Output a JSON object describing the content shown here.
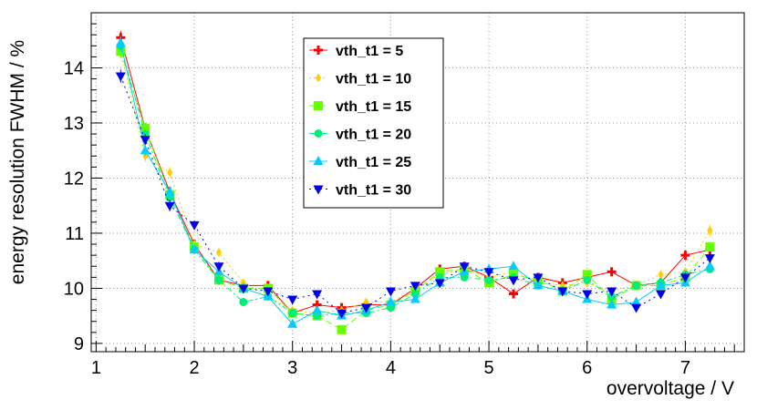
{
  "chart_data": {
    "type": "line",
    "title": "",
    "xlabel": "overvoltage / V",
    "ylabel": "energy resolution FWHM / %",
    "xlim": [
      0.95,
      7.6
    ],
    "ylim": [
      8.85,
      15.0
    ],
    "xticks": [
      1,
      2,
      3,
      4,
      5,
      6,
      7
    ],
    "yticks": [
      9,
      10,
      11,
      12,
      13,
      14
    ],
    "grid": true,
    "legend_position": "top-center",
    "x": [
      1.25,
      1.5,
      1.75,
      2.0,
      2.25,
      2.5,
      2.75,
      3.0,
      3.25,
      3.5,
      3.75,
      4.0,
      4.25,
      4.5,
      4.75,
      5.0,
      5.25,
      5.5,
      5.75,
      6.0,
      6.25,
      6.5,
      6.75,
      7.0,
      7.25
    ],
    "series": [
      {
        "name": "vth_t1 = 5",
        "color": "#ff0000",
        "marker": "plus",
        "dash": "solid",
        "values": [
          14.55,
          12.9,
          11.75,
          10.8,
          10.15,
          10.05,
          10.05,
          9.55,
          9.7,
          9.65,
          9.7,
          9.7,
          10.0,
          10.35,
          10.4,
          10.2,
          9.9,
          10.2,
          10.1,
          10.2,
          10.3,
          10.05,
          10.1,
          10.6,
          10.7
        ],
        "errors": [
          0.12,
          0.1,
          0.1,
          0.08,
          0.08,
          0.06,
          0.06,
          0.06,
          0.06,
          0.06,
          0.06,
          0.06,
          0.06,
          0.06,
          0.06,
          0.06,
          0.06,
          0.06,
          0.06,
          0.06,
          0.06,
          0.06,
          0.06,
          0.08,
          0.08
        ]
      },
      {
        "name": "vth_t1 = 10",
        "color": "#ffcc00",
        "marker": "diamond",
        "dash": "2,3",
        "values": [
          14.3,
          12.4,
          12.1,
          10.8,
          10.65,
          10.1,
          9.85,
          9.6,
          9.55,
          9.6,
          9.75,
          9.75,
          10.0,
          10.25,
          10.35,
          10.2,
          10.3,
          10.1,
          10.05,
          10.1,
          9.95,
          10.05,
          10.25,
          10.3,
          11.05
        ],
        "errors": [
          0.12,
          0.1,
          0.1,
          0.08,
          0.08,
          0.06,
          0.06,
          0.06,
          0.06,
          0.06,
          0.06,
          0.06,
          0.06,
          0.06,
          0.06,
          0.06,
          0.06,
          0.06,
          0.06,
          0.06,
          0.06,
          0.06,
          0.06,
          0.08,
          0.1
        ]
      },
      {
        "name": "vth_t1 = 15",
        "color": "#66ff00",
        "marker": "square",
        "dash": "7,4",
        "values": [
          14.3,
          12.9,
          11.7,
          10.75,
          10.15,
          10.0,
          10.0,
          9.55,
          9.5,
          9.25,
          9.6,
          9.7,
          9.95,
          10.3,
          10.35,
          10.1,
          10.25,
          10.15,
          9.95,
          10.25,
          9.8,
          10.05,
          10.05,
          10.2,
          10.75
        ],
        "errors": [
          0.12,
          0.1,
          0.1,
          0.08,
          0.08,
          0.06,
          0.06,
          0.06,
          0.06,
          0.06,
          0.06,
          0.06,
          0.06,
          0.06,
          0.06,
          0.06,
          0.06,
          0.06,
          0.06,
          0.06,
          0.06,
          0.06,
          0.06,
          0.08,
          0.08
        ]
      },
      {
        "name": "vth_t1 = 20",
        "color": "#00ee77",
        "marker": "circle",
        "dash": "6,3,2,3",
        "values": [
          14.4,
          12.8,
          11.65,
          10.7,
          10.15,
          9.75,
          9.85,
          9.55,
          9.5,
          9.55,
          9.55,
          9.65,
          9.9,
          10.2,
          10.2,
          10.15,
          10.2,
          10.05,
          9.95,
          10.15,
          9.85,
          10.05,
          10.1,
          10.25,
          10.35
        ],
        "errors": [
          0.12,
          0.1,
          0.1,
          0.08,
          0.08,
          0.06,
          0.06,
          0.06,
          0.06,
          0.06,
          0.06,
          0.06,
          0.06,
          0.06,
          0.06,
          0.06,
          0.06,
          0.06,
          0.06,
          0.06,
          0.06,
          0.06,
          0.06,
          0.08,
          0.08
        ]
      },
      {
        "name": "vth_t1 = 25",
        "color": "#00ccff",
        "marker": "triangle-up",
        "dash": "solid",
        "values": [
          14.45,
          12.5,
          11.75,
          10.7,
          10.3,
          10.0,
          9.85,
          9.35,
          9.6,
          9.5,
          9.6,
          9.75,
          9.8,
          10.1,
          10.3,
          10.35,
          10.4,
          10.05,
          9.95,
          9.8,
          9.7,
          9.75,
          10.05,
          10.1,
          10.4
        ],
        "errors": [
          0.12,
          0.1,
          0.1,
          0.08,
          0.08,
          0.06,
          0.06,
          0.06,
          0.06,
          0.06,
          0.06,
          0.06,
          0.06,
          0.06,
          0.06,
          0.06,
          0.06,
          0.06,
          0.06,
          0.06,
          0.06,
          0.06,
          0.06,
          0.08,
          0.08
        ]
      },
      {
        "name": "vth_t1 = 30",
        "color": "#0000ee",
        "marker": "triangle-down",
        "dash": "2,4",
        "values": [
          13.85,
          12.7,
          11.5,
          11.15,
          10.4,
          10.0,
          9.95,
          9.8,
          9.9,
          9.55,
          9.65,
          9.95,
          10.05,
          10.1,
          10.4,
          10.3,
          10.15,
          10.2,
          9.95,
          9.9,
          9.95,
          9.65,
          9.9,
          10.2,
          10.55
        ],
        "errors": [
          0.12,
          0.1,
          0.1,
          0.08,
          0.08,
          0.06,
          0.06,
          0.06,
          0.06,
          0.06,
          0.06,
          0.06,
          0.06,
          0.06,
          0.06,
          0.06,
          0.06,
          0.06,
          0.06,
          0.06,
          0.06,
          0.06,
          0.06,
          0.08,
          0.08
        ]
      }
    ]
  }
}
